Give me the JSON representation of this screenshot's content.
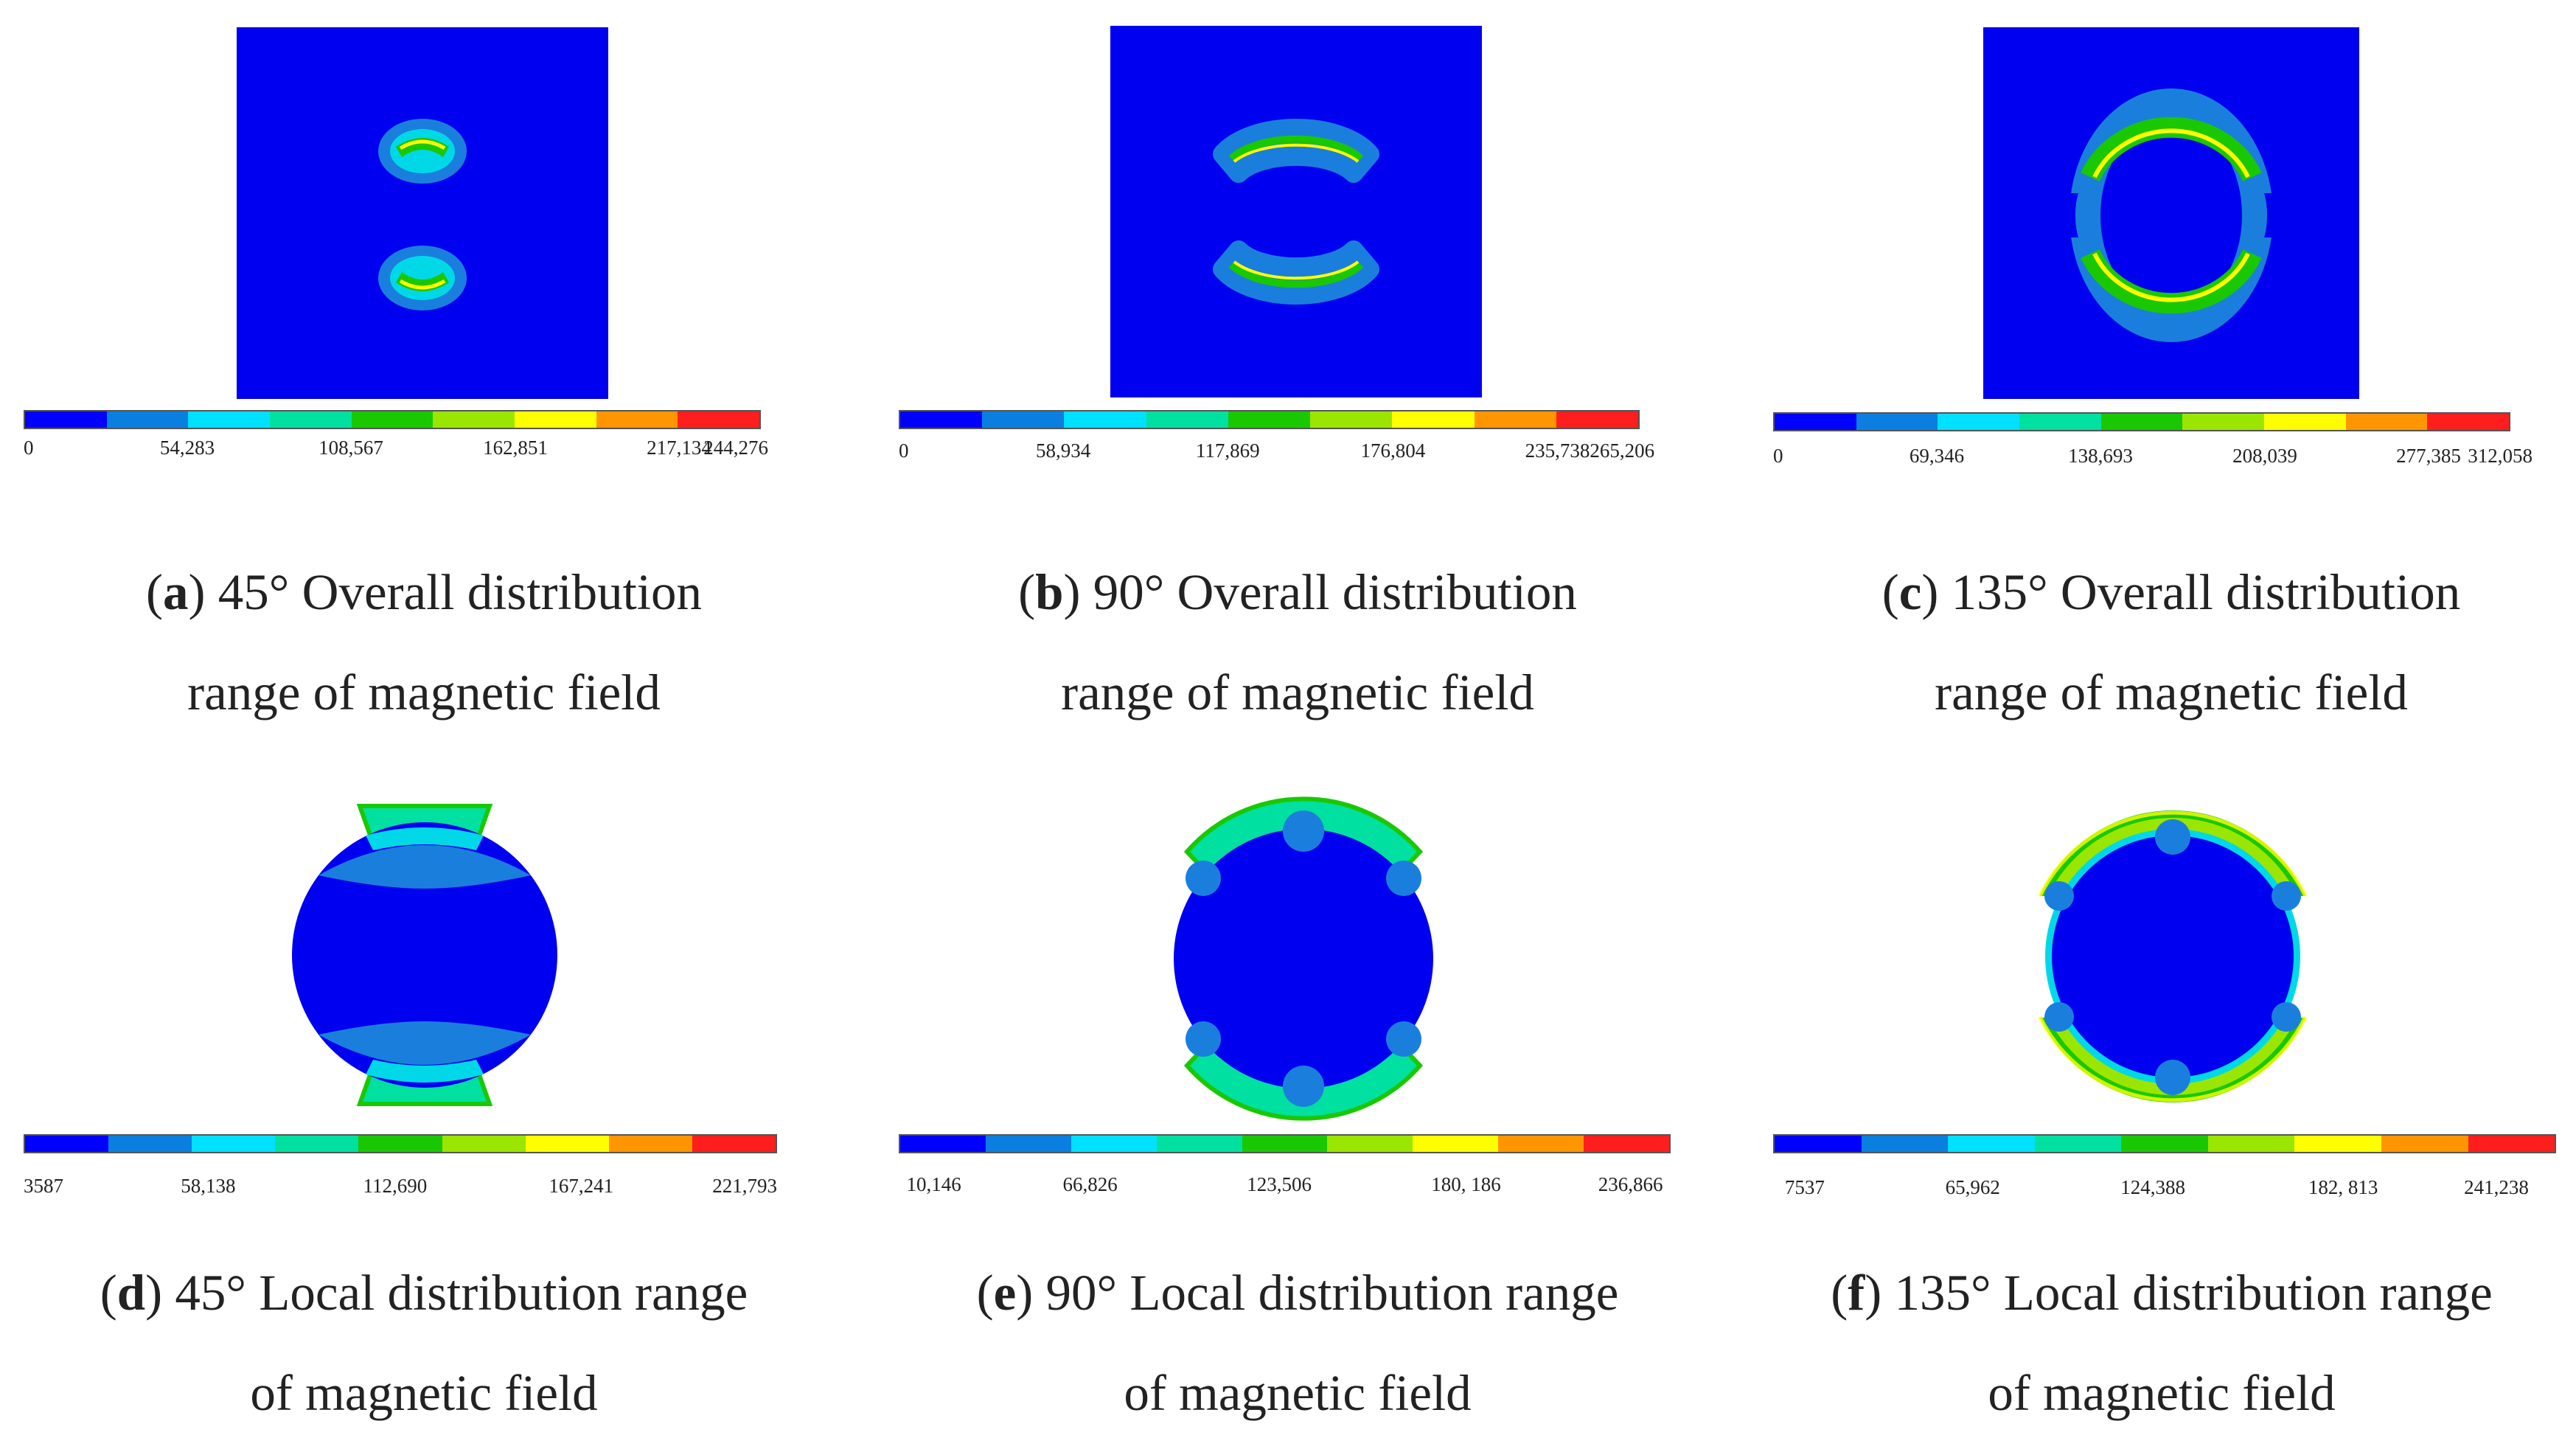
{
  "colormap": [
    "#0000ff",
    "#0a7fe0",
    "#00e0ff",
    "#00e0a0",
    "#19c800",
    "#9ae600",
    "#ffff00",
    "#ff9600",
    "#ff1e1e"
  ],
  "panels": [
    {
      "id": "a",
      "letter": "a",
      "label_line1": " 45° Overall distribution",
      "label_line2": "range of magnetic field",
      "ticks": [
        "0",
        "54,283",
        "108,567",
        "162,851",
        "217,134",
        "244,276"
      ],
      "image_kind": "overall",
      "angle": 45
    },
    {
      "id": "b",
      "letter": "b",
      "label_line1": " 90° Overall distribution",
      "label_line2": "range of magnetic field",
      "ticks": [
        "0",
        "58,934",
        "117,869",
        "176,804",
        "235,738",
        "265,206"
      ],
      "image_kind": "overall",
      "angle": 90
    },
    {
      "id": "c",
      "letter": "c",
      "label_line1": " 135° Overall distribution",
      "label_line2": "range of magnetic field",
      "ticks": [
        "0",
        "69,346",
        "138,693",
        "208,039",
        "277,385",
        "312,058"
      ],
      "image_kind": "overall",
      "angle": 135
    },
    {
      "id": "d",
      "letter": "d",
      "label_line1": " 45° Local distribution range",
      "label_line2": "of magnetic field",
      "ticks": [
        "3587",
        "58,138",
        "112,690",
        "167,241",
        "221,793"
      ],
      "image_kind": "local",
      "angle": 45
    },
    {
      "id": "e",
      "letter": "e",
      "label_line1": " 90° Local distribution range",
      "label_line2": "of magnetic field",
      "ticks": [
        "10,146",
        "66,826",
        "123,506",
        "180, 186",
        "236,866"
      ],
      "image_kind": "local",
      "angle": 90
    },
    {
      "id": "f",
      "letter": "f",
      "label_line1": " 135° Local distribution range",
      "label_line2": "of magnetic field",
      "ticks": [
        "7537",
        "65,962",
        "124,388",
        "182, 813",
        "241,238"
      ],
      "image_kind": "local",
      "angle": 135
    }
  ]
}
